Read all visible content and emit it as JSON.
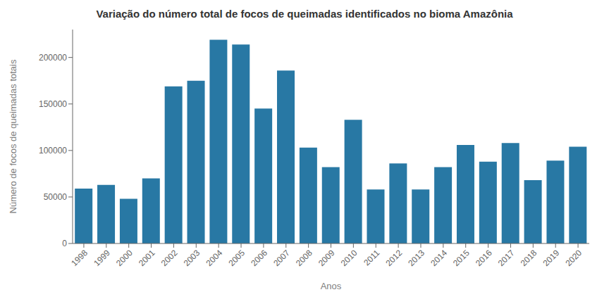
{
  "chart_data": {
    "type": "bar",
    "title": "Variação do número total de focos de queimadas identificados no bioma Amazônia",
    "xlabel": "Anos",
    "ylabel": "Número de focos de queimadas totais",
    "categories": [
      "1998",
      "1999",
      "2000",
      "2001",
      "2002",
      "2003",
      "2004",
      "2005",
      "2006",
      "2007",
      "2008",
      "2009",
      "2010",
      "2011",
      "2012",
      "2013",
      "2014",
      "2015",
      "2016",
      "2017",
      "2018",
      "2019",
      "2020"
    ],
    "values": [
      59000,
      63000,
      48000,
      70000,
      169000,
      175000,
      219000,
      214000,
      145000,
      186000,
      103000,
      82000,
      133000,
      58000,
      86000,
      58000,
      82000,
      106000,
      88000,
      108000,
      68000,
      89000,
      104000
    ],
    "color": "#2878a4",
    "ylim": [
      0,
      230000
    ],
    "yticks": [
      0,
      50000,
      100000,
      150000,
      200000
    ],
    "grid": false
  }
}
